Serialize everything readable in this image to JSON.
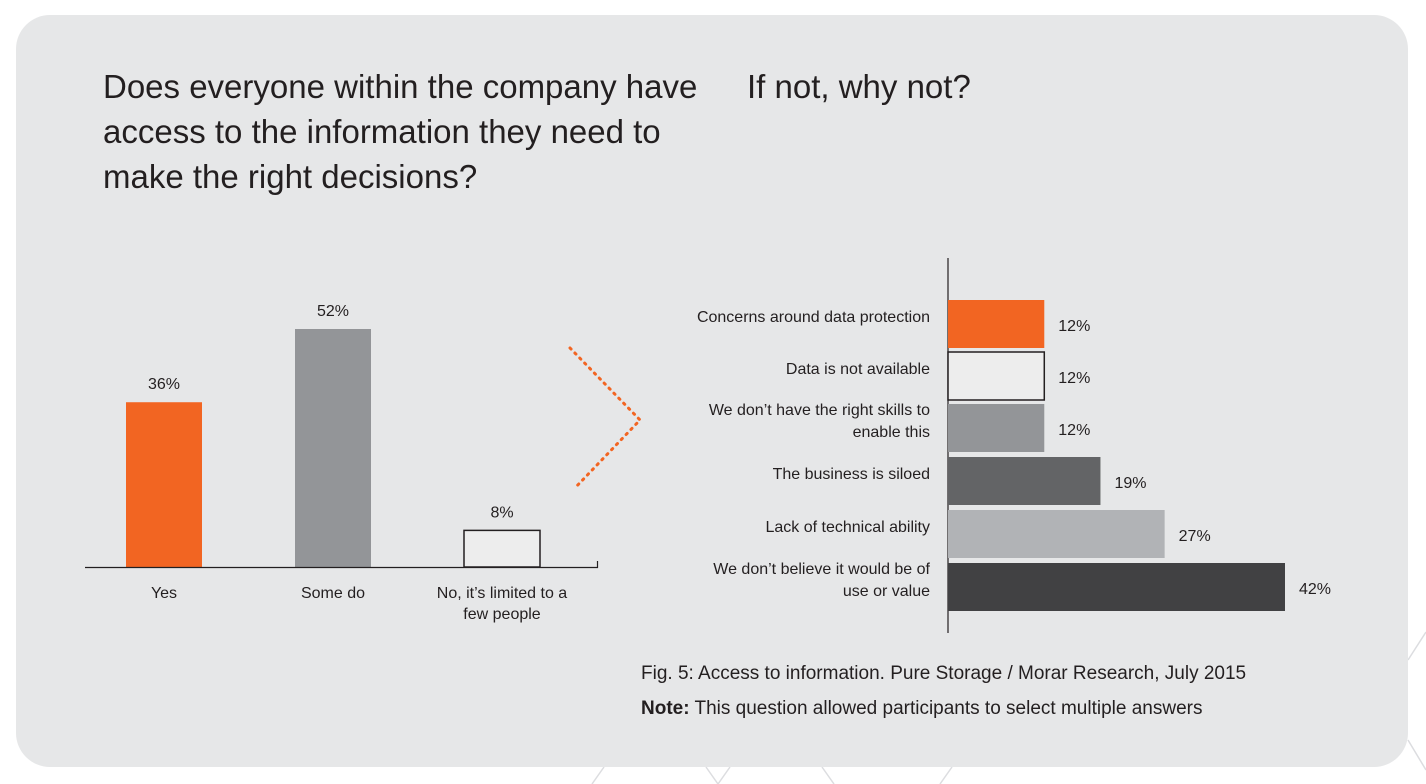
{
  "titles": {
    "left": "Does everyone within the company have access to the information they need to make the right decisions?",
    "right": "If not, why not?"
  },
  "caption": {
    "figure": "Fig. 5: Access to information. Pure Storage / Morar Research, July 2015",
    "note_label": "Note:",
    "note_text": "This question allowed participants to select multiple answers"
  },
  "colors": {
    "orange": "#f26522",
    "grey": "#939598",
    "light": "#ededed",
    "dark": "#636466",
    "silver": "#b1b3b6",
    "darkest": "#414143"
  },
  "chart_data": [
    {
      "type": "bar",
      "orientation": "vertical",
      "categories": [
        [
          "Yes"
        ],
        [
          "Some do"
        ],
        [
          "No, it’s limited to a",
          "few people"
        ]
      ],
      "values": [
        36,
        52,
        8
      ],
      "data_labels": [
        "36%",
        "52%",
        "8%"
      ],
      "colors": [
        "#f26522",
        "#939598",
        "#ededed"
      ],
      "ylim": [
        0,
        52
      ]
    },
    {
      "type": "bar",
      "orientation": "horizontal",
      "categories": [
        [
          "Concerns around data protection"
        ],
        [
          "Data is not available"
        ],
        [
          "We don’t have the right skills to",
          "enable this"
        ],
        [
          "The business is siloed"
        ],
        [
          "Lack of technical ability"
        ],
        [
          "We don’t believe it would be of",
          "use or value"
        ]
      ],
      "values": [
        12,
        12,
        12,
        19,
        27,
        42
      ],
      "data_labels": [
        "12%",
        "12%",
        "12%",
        "19%",
        "27%",
        "42%"
      ],
      "colors": [
        "#f26522",
        "#ededed",
        "#939598",
        "#636466",
        "#b1b3b6",
        "#414143"
      ],
      "xlim": [
        0,
        42
      ]
    }
  ]
}
